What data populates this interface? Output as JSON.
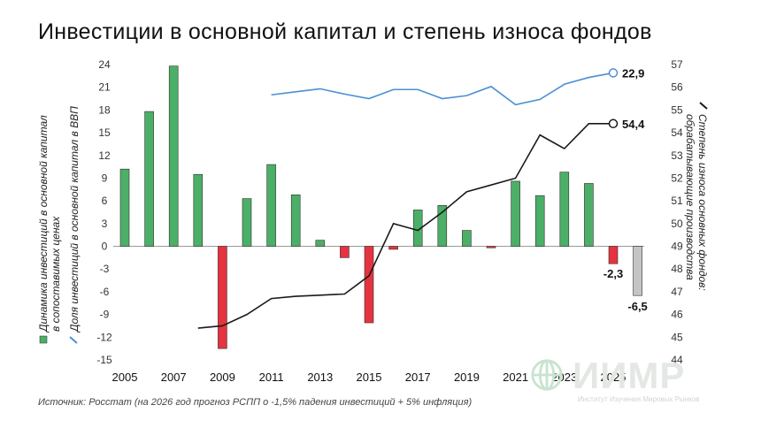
{
  "title": "Инвестиции в основной капитал и степень износа фондов",
  "source": "Источник: Росстат (на 2026 год прогноз РСПП о -1,5% падения инвестиций + 5% инфляция)",
  "logo": {
    "name": "ИИМР",
    "subtitle": "Институт Изучения Мировых Рынков"
  },
  "colors": {
    "positive": "#4caf68",
    "negative": "#e5343f",
    "forecast": "#c4c4c4",
    "share_line": "#4a8fd4",
    "wear_line": "#1a1a1a"
  },
  "chart_data": {
    "type": "bar",
    "title": "Инвестиции в основной капитал и степень износа фондов",
    "legend": {
      "bars_label_line1": "Динамика инвестиций в основной капитал",
      "bars_label_line2": "в сопоставимых ценах",
      "blue_line_label": "Доля инвестиций в основной капитал в ВВП",
      "black_line_label_line1": "Степень износа основных фондов:",
      "black_line_label_line2": "обрабатывающие производства"
    },
    "x_tick_labels": [
      "2005",
      "2007",
      "2009",
      "2011",
      "2013",
      "2015",
      "2017",
      "2019",
      "2021",
      "2023",
      "2025"
    ],
    "left_axis": {
      "min": -15,
      "max": 24,
      "ticks": [
        "24",
        "21",
        "18",
        "15",
        "12",
        "9",
        "6",
        "3",
        "0",
        "-3",
        "-6",
        "-9",
        "-12",
        "-15"
      ]
    },
    "right_axis": {
      "min": 44,
      "max": 57,
      "ticks": [
        "57",
        "56",
        "55",
        "54",
        "53",
        "52",
        "51",
        "50",
        "49",
        "48",
        "47",
        "46",
        "45",
        "44"
      ]
    },
    "investment_growth": {
      "years": [
        2005,
        2006,
        2007,
        2008,
        2009,
        2010,
        2011,
        2012,
        2013,
        2014,
        2015,
        2016,
        2017,
        2018,
        2019,
        2020,
        2021,
        2022,
        2023,
        2024,
        2025,
        2026
      ],
      "values": [
        10.2,
        17.8,
        23.8,
        9.5,
        -13.5,
        6.3,
        10.8,
        6.8,
        0.8,
        -1.5,
        -10.1,
        -0.4,
        4.8,
        5.4,
        2.1,
        -0.2,
        8.6,
        6.7,
        9.8,
        8.3,
        -2.3,
        -6.5
      ],
      "forecast_years": [
        2026
      ]
    },
    "gdp_share": {
      "years": [
        2011,
        2012,
        2013,
        2014,
        2015,
        2016,
        2017,
        2018,
        2019,
        2020,
        2021,
        2022,
        2023,
        2024,
        2025
      ],
      "values": [
        20.0,
        20.4,
        20.8,
        20.1,
        19.5,
        20.7,
        20.7,
        19.5,
        19.9,
        21.1,
        18.7,
        19.4,
        21.4,
        22.3,
        22.9
      ]
    },
    "wear_degree": {
      "years": [
        2008,
        2009,
        2010,
        2011,
        2012,
        2013,
        2014,
        2015,
        2016,
        2017,
        2018,
        2019,
        2020,
        2021,
        2022,
        2023,
        2024,
        2025
      ],
      "values": [
        45.4,
        45.5,
        46.0,
        46.7,
        46.8,
        46.85,
        46.9,
        47.7,
        50.0,
        49.7,
        50.5,
        51.4,
        51.7,
        52.0,
        53.9,
        53.3,
        54.4,
        54.4
      ]
    },
    "data_labels": {
      "investment_2025": "-2,3",
      "investment_2026": "-6,5",
      "gdp_share_last": "22,9",
      "wear_last": "54,4"
    }
  }
}
